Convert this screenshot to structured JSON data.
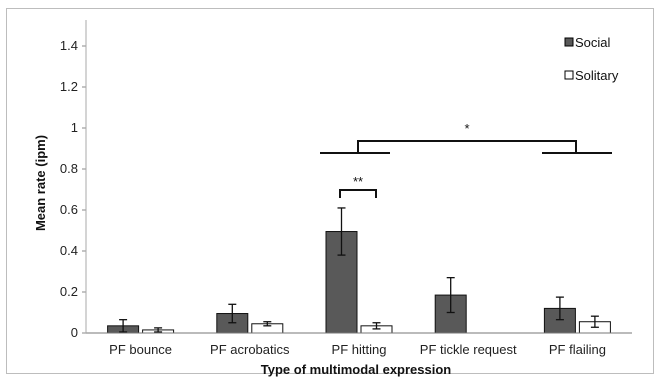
{
  "chart_data": {
    "type": "bar",
    "categories": [
      "PF bounce",
      "PF acrobatics",
      "PF hitting",
      "PF tickle request",
      "PF flailing"
    ],
    "series": [
      {
        "name": "Social",
        "color": "#595959",
        "values": [
          0.035,
          0.095,
          0.495,
          0.185,
          0.12
        ],
        "error": [
          0.03,
          0.045,
          0.115,
          0.085,
          0.055
        ]
      },
      {
        "name": "Solitary",
        "color": "#ffffff",
        "values": [
          0.015,
          0.045,
          0.035,
          null,
          0.055
        ],
        "error": [
          0.01,
          0.01,
          0.015,
          null,
          0.027
        ]
      }
    ],
    "yticks": [
      "0",
      "0.2",
      "0.4",
      "0.6",
      "0.8",
      "1",
      "1.2",
      "1.4"
    ],
    "ylim": [
      0,
      1.5
    ],
    "xlabel": "Type of multimodal expression",
    "ylabel": "Mean rate (ipm)",
    "legend_position": "top-right",
    "annotations": [
      {
        "label": "**",
        "between": [
          "PF hitting Social",
          "PF hitting Solitary"
        ]
      },
      {
        "label": "*",
        "between": [
          "PF hitting",
          "PF flailing"
        ]
      }
    ],
    "grid": false
  }
}
